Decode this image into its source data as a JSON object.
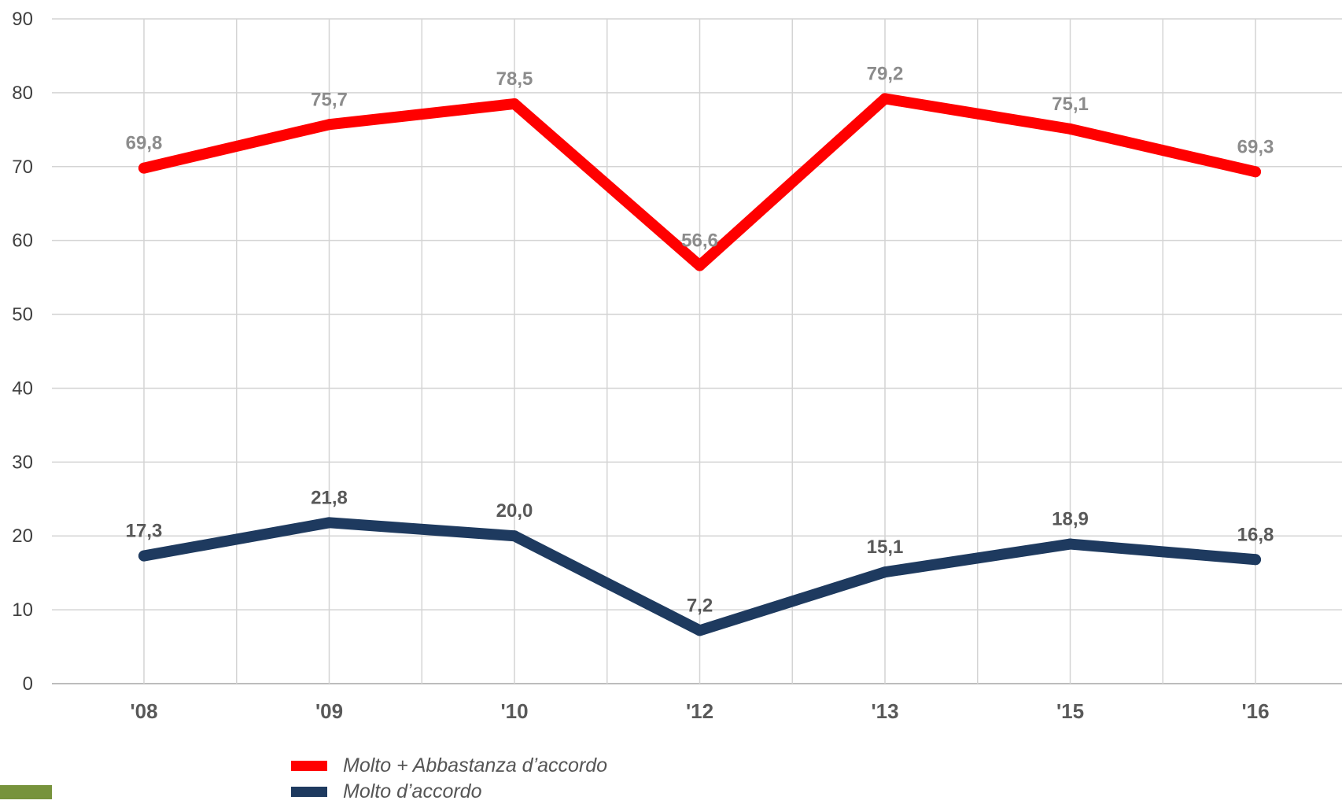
{
  "chart_data": {
    "type": "line",
    "categories": [
      "'08",
      "'09",
      "'10",
      "'12",
      "'13",
      "'15",
      "'16"
    ],
    "ylim": [
      0,
      90
    ],
    "yticks": [
      0,
      10,
      20,
      30,
      40,
      50,
      60,
      70,
      80,
      90
    ],
    "grid": true,
    "legend_position": "bottom",
    "series": [
      {
        "name": "Molto + Abbastanza d’accordo",
        "color": "#ff0000",
        "values": [
          69.8,
          75.7,
          78.5,
          56.6,
          79.2,
          75.1,
          69.3
        ],
        "labels": [
          "69,8",
          "75,7",
          "78,5",
          "56,6",
          "79,2",
          "75,1",
          "69,3"
        ],
        "label_color": "#8c8c8c"
      },
      {
        "name": "Molto d’accordo",
        "color": "#1e3a5f",
        "values": [
          17.3,
          21.8,
          20.0,
          7.2,
          15.1,
          18.9,
          16.8
        ],
        "labels": [
          "17,3",
          "21,8",
          "20,0",
          "7,2",
          "15,1",
          "18,9",
          "16,8"
        ],
        "label_color": "#595959"
      }
    ]
  },
  "accent_color": "#77933c"
}
